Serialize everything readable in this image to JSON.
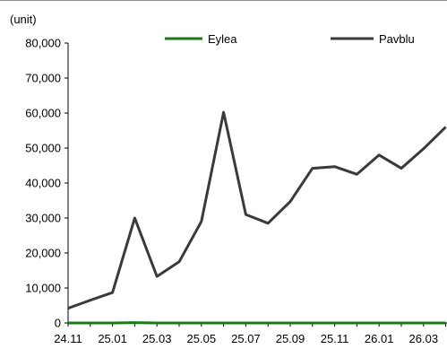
{
  "chart_data": {
    "type": "line",
    "title": "",
    "xlabel": "",
    "ylabel": "",
    "unit_label": "(unit)",
    "ylim": [
      0,
      80000
    ],
    "y_ticks": [
      "0",
      "10,000",
      "20,000",
      "30,000",
      "40,000",
      "50,000",
      "60,000",
      "70,000",
      "80,000"
    ],
    "x": [
      "24.11",
      "24.12",
      "25.01",
      "25.02",
      "25.03",
      "25.04",
      "25.05",
      "25.06",
      "25.07",
      "25.08",
      "25.09",
      "25.10",
      "25.11",
      "25.12",
      "26.01",
      "26.02",
      "26.03",
      "26.04"
    ],
    "x_tick_labels": [
      "24.11",
      "25.01",
      "25.03",
      "25.05",
      "25.07",
      "25.09",
      "25.11",
      "26.01",
      "26.03"
    ],
    "legend_placement": "top",
    "grid": false,
    "series": [
      {
        "name": "Eylea",
        "color": "#1a7a1a",
        "values": [
          0,
          0,
          0,
          100,
          0,
          0,
          0,
          0,
          0,
          0,
          0,
          0,
          0,
          0,
          0,
          0,
          0,
          0
        ]
      },
      {
        "name": "Pavblu",
        "color": "#3a3a3a",
        "values": [
          4200,
          6500,
          8700,
          30000,
          13300,
          17500,
          29000,
          60200,
          31000,
          28500,
          34700,
          44200,
          44700,
          42500,
          48000,
          44200,
          49800,
          56000
        ]
      }
    ]
  }
}
